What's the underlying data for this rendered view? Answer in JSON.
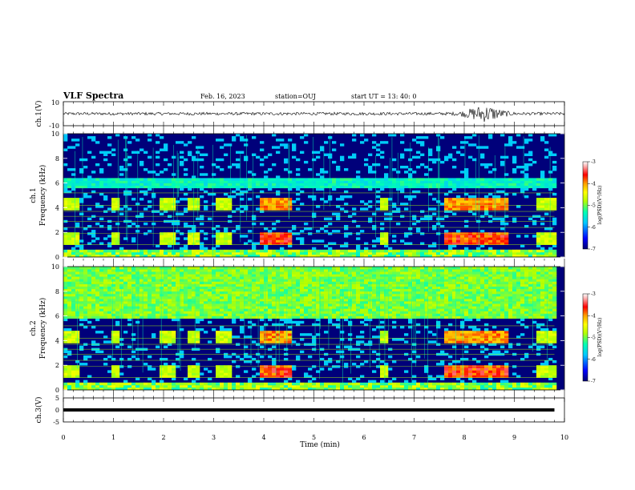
{
  "header": {
    "title": "VLF Spectra",
    "date": "Feb. 16, 2023",
    "station": "station=OUJ",
    "start": "start UT =  13: 40: 0"
  },
  "colors": {
    "background": "#ffffff",
    "axes": "#000000",
    "spectrogram_base": "#00007a",
    "cmap": [
      "#000070",
      "#0000ff",
      "#00c8ff",
      "#00ffb4",
      "#b4ff00",
      "#ffff00",
      "#ffa000",
      "#ff0000",
      "#ffb4b4",
      "#ffffff"
    ]
  },
  "chart_data": [
    {
      "type": "line",
      "name": "ch.1 waveform",
      "ylabel": "ch.1(V)",
      "ylim": [
        -10,
        10
      ],
      "yticks": [
        "10",
        "-10"
      ],
      "xlim": [
        0,
        10
      ]
    },
    {
      "type": "heatmap",
      "name": "ch.1 spectrogram",
      "ylabel": "ch.1\nFrequency (kHz)",
      "ylim": [
        0,
        10
      ],
      "yticks": [
        "0",
        "2",
        "4",
        "6",
        "8",
        "10"
      ],
      "xlim": [
        0,
        10
      ],
      "colorbar": {
        "label": "log(PSD)(V²/Hz)",
        "range": [
          -7,
          -3
        ],
        "ticks": [
          "-3",
          "-4",
          "-5",
          "-6",
          "-7"
        ]
      }
    },
    {
      "type": "heatmap",
      "name": "ch.2 spectrogram",
      "ylabel": "ch.2\nFrequency (kHz)",
      "ylim": [
        0,
        10
      ],
      "yticks": [
        "0",
        "2",
        "4",
        "6",
        "8",
        "10"
      ],
      "xlim": [
        0,
        10
      ],
      "colorbar": {
        "label": "log(PSD)(V²/Hz)",
        "range": [
          -7,
          -3
        ],
        "ticks": [
          "-3",
          "-4",
          "-5",
          "-6",
          "-7"
        ]
      }
    },
    {
      "type": "line",
      "name": "ch.3 waveform",
      "ylabel": "ch.3(V)",
      "ylim": [
        -5,
        5
      ],
      "yticks": [
        "5",
        "0",
        "-5"
      ],
      "xlim": [
        0,
        10
      ],
      "constant_value": 0
    }
  ],
  "xaxis": {
    "label": "Time (min)",
    "ticks": [
      "0",
      "1",
      "2",
      "3",
      "4",
      "5",
      "6",
      "7",
      "8",
      "9",
      "10"
    ],
    "range": [
      0,
      10
    ]
  }
}
